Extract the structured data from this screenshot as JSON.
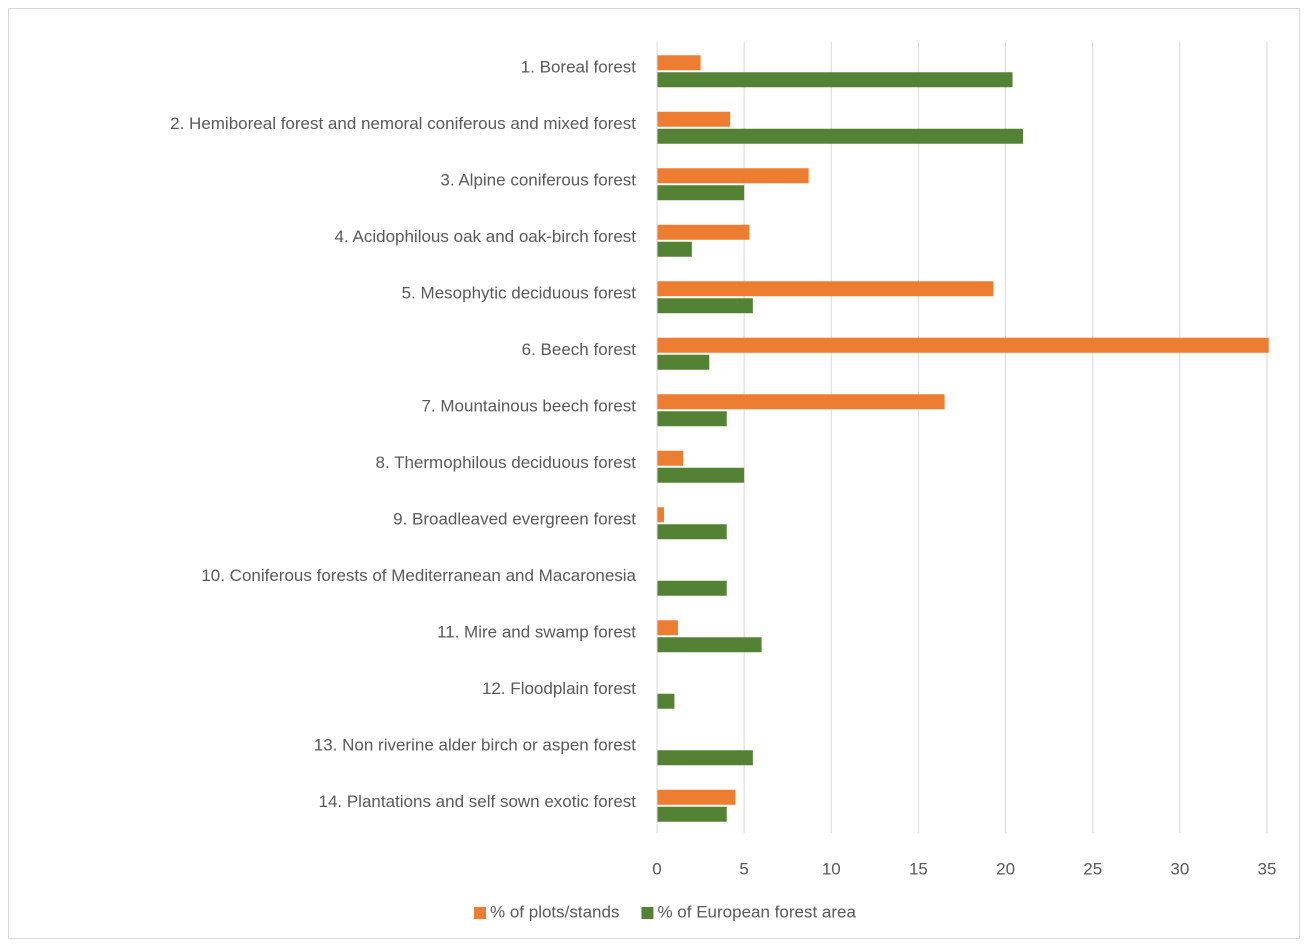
{
  "chart_data": {
    "type": "bar",
    "orientation": "horizontal",
    "categories": [
      "1. Boreal forest",
      "2. Hemiboreal forest and nemoral coniferous and mixed forest",
      "3. Alpine coniferous forest",
      "4. Acidophilous oak and oak-birch forest",
      "5. Mesophytic deciduous forest",
      "6. Beech forest",
      "7. Mountainous beech forest",
      "8. Thermophilous deciduous forest",
      "9. Broadleaved evergreen forest",
      "10. Coniferous forests of Mediterranean and Macaronesia",
      "11. Mire and swamp forest",
      "12. Floodplain forest",
      "13. Non riverine alder birch or aspen forest",
      "14. Plantations and self sown exotic forest"
    ],
    "series": [
      {
        "name": "% of plots/stands",
        "color": "#ed7d31",
        "values": [
          2.5,
          4.2,
          8.7,
          5.3,
          19.3,
          35.1,
          16.5,
          1.5,
          0.4,
          0,
          1.2,
          0,
          0,
          4.5
        ]
      },
      {
        "name": "% of European forest area",
        "color": "#548235",
        "values": [
          20.4,
          21,
          5,
          2,
          5.5,
          3,
          4,
          5,
          4,
          4,
          6,
          1,
          5.5,
          4
        ]
      }
    ],
    "xlim": [
      0,
      35
    ],
    "xticks": [
      0,
      5,
      10,
      15,
      20,
      25,
      30,
      35
    ],
    "grid": true,
    "legend": "bottom"
  }
}
